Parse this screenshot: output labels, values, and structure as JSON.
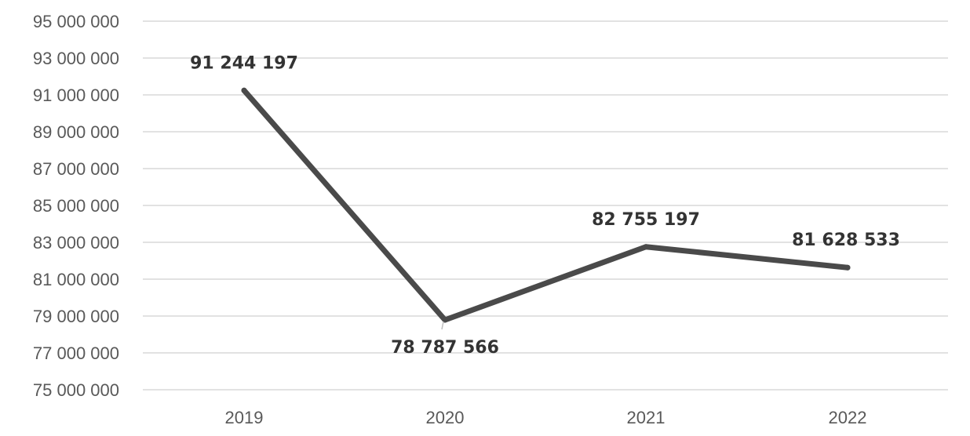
{
  "colors": {
    "line": "#4a4a4a",
    "grid": "#d9d9d9",
    "tick_text": "#595959",
    "label_text": "#333333"
  },
  "chart_data": {
    "type": "line",
    "title": "",
    "xlabel": "",
    "ylabel": "",
    "categories": [
      "2019",
      "2020",
      "2021",
      "2022"
    ],
    "series": [
      {
        "values": [
          91244197,
          78787566,
          82755197,
          81628533
        ],
        "value_labels": [
          "91 244 197",
          "78 787 566",
          "82 755 197",
          "81 628 533"
        ]
      }
    ],
    "ylim": [
      75000000,
      95000000
    ],
    "y_ticks": [
      75000000,
      77000000,
      79000000,
      81000000,
      83000000,
      85000000,
      87000000,
      89000000,
      91000000,
      93000000,
      95000000
    ],
    "y_tick_labels": [
      "75 000 000",
      "77 000 000",
      "79 000 000",
      "81 000 000",
      "83 000 000",
      "85 000 000",
      "87 000 000",
      "89 000 000",
      "91 000 000",
      "93 000 000",
      "95 000 000"
    ],
    "grid": true,
    "legend": "none"
  }
}
